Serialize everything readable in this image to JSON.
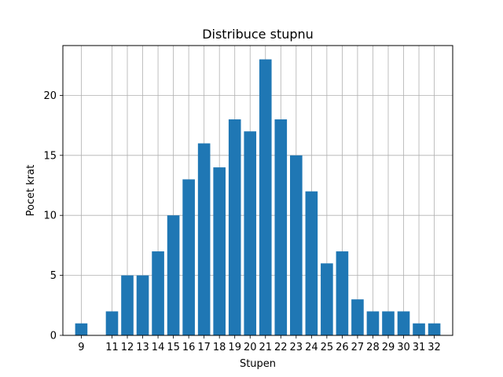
{
  "chart_data": {
    "type": "bar",
    "title": "Distribuce stupnu",
    "xlabel": "Stupen",
    "ylabel": "Pocet krat",
    "x": [
      9,
      11,
      12,
      13,
      14,
      15,
      16,
      17,
      18,
      19,
      20,
      21,
      22,
      23,
      24,
      25,
      26,
      27,
      28,
      29,
      30,
      31,
      32
    ],
    "values": [
      1,
      2,
      5,
      5,
      7,
      10,
      13,
      16,
      14,
      18,
      17,
      23,
      18,
      15,
      12,
      6,
      7,
      3,
      2,
      2,
      2,
      1,
      1
    ],
    "xlim": [
      7.8,
      33.2
    ],
    "ylim": [
      0,
      24.15
    ],
    "yticks": [
      0,
      5,
      10,
      15,
      20
    ],
    "grid": true,
    "bar_color": "#1f77b4"
  }
}
